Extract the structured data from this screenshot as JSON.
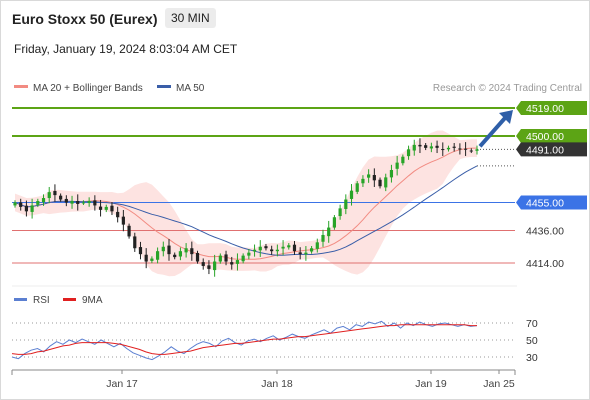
{
  "header": {
    "title": "Euro Stoxx 50 (Eurex)",
    "timeframe": "30 MIN",
    "datetime": "Friday, January 19, 2024 8:03:04 AM CET"
  },
  "legend_main": [
    {
      "label": "MA 20 + Bollinger Bands",
      "color": "#f28b82"
    },
    {
      "label": "MA 50",
      "color": "#3a5ea8"
    }
  ],
  "credit": "Research © 2024 Trading Central",
  "legend_rsi": [
    {
      "label": "RSI",
      "color": "#5b7fd1"
    },
    {
      "label": "9MA",
      "color": "#e02020"
    }
  ],
  "chart_data": [
    {
      "type": "candlestick",
      "title": "Euro Stoxx 50 (Eurex)",
      "timeframe": "30 MIN",
      "ylim": [
        4400,
        4530
      ],
      "x_ticks": [
        "Jan 17",
        "Jan 18",
        "Jan 19",
        "Jan 25"
      ],
      "price_levels": [
        {
          "value": 4519.0,
          "label": "4519.00",
          "style": "target",
          "color": "#5ca415"
        },
        {
          "value": 4500.0,
          "label": "4500.00",
          "style": "resistance",
          "color": "#5ca415"
        },
        {
          "value": 4491.0,
          "label": "4491.00",
          "style": "last price",
          "color": "#333333"
        },
        {
          "value": 4455.0,
          "label": "4455.00",
          "style": "pivot",
          "color": "#3b73e6"
        },
        {
          "value": 4436.0,
          "label": "4436.00",
          "style": "support",
          "color": "#e07070"
        },
        {
          "value": 4414.0,
          "label": "4414.00",
          "style": "support",
          "color": "#e07070"
        }
      ],
      "closes": [
        4455,
        4452,
        4449,
        4453,
        4456,
        4458,
        4462,
        4460,
        4457,
        4455,
        4456,
        4454,
        4455,
        4456,
        4453,
        4450,
        4452,
        4449,
        4445,
        4440,
        4432,
        4424,
        4420,
        4415,
        4417,
        4422,
        4425,
        4420,
        4418,
        4422,
        4424,
        4420,
        4415,
        4412,
        4410,
        4415,
        4419,
        4415,
        4413,
        4416,
        4419,
        4421,
        4423,
        4425,
        4424,
        4422,
        4423,
        4425,
        4426,
        4422,
        4420,
        4421,
        4424,
        4428,
        4433,
        4438,
        4445,
        4451,
        4457,
        4463,
        4468,
        4471,
        4474,
        4470,
        4466,
        4472,
        4477,
        4482,
        4486,
        4491,
        4494,
        4493,
        4492,
        4493,
        4492,
        4491,
        4492,
        4492,
        4491,
        4491,
        4490,
        4491
      ],
      "series": [
        {
          "name": "MA 20 + Bollinger Bands",
          "color": "#f28b82"
        },
        {
          "name": "MA 50",
          "color": "#3a5ea8"
        }
      ],
      "projection": {
        "from": 4491,
        "to": 4519
      }
    },
    {
      "type": "line",
      "ylim": [
        20,
        80
      ],
      "y_ticks": [
        70,
        50,
        30
      ],
      "series": [
        {
          "name": "RSI",
          "color": "#5b7fd1",
          "values": [
            30,
            28,
            34,
            38,
            40,
            36,
            43,
            48,
            45,
            50,
            47,
            51,
            48,
            45,
            50,
            46,
            42,
            46,
            40,
            35,
            32,
            29,
            27,
            31,
            36,
            42,
            37,
            34,
            40,
            45,
            48,
            46,
            42,
            49,
            52,
            47,
            44,
            49,
            51,
            48,
            52,
            55,
            50,
            53,
            57,
            54,
            52,
            56,
            59,
            62,
            58,
            64,
            66,
            62,
            68,
            66,
            71,
            69,
            72,
            66,
            70,
            64,
            70,
            67,
            71,
            68,
            66,
            69,
            70,
            68,
            66,
            68,
            66,
            67
          ]
        },
        {
          "name": "9MA",
          "color": "#e02020",
          "values": [
            34,
            33,
            33,
            34,
            36,
            37,
            39,
            41,
            43,
            44,
            46,
            47,
            47,
            47,
            47,
            47,
            46,
            45,
            43,
            41,
            39,
            36,
            34,
            33,
            33,
            34,
            35,
            36,
            37,
            39,
            41,
            42,
            43,
            44,
            45,
            46,
            46,
            47,
            48,
            49,
            50,
            51,
            51,
            52,
            53,
            54,
            54,
            55,
            56,
            57,
            58,
            59,
            60,
            61,
            62,
            63,
            64,
            65,
            66,
            67,
            67,
            68,
            68,
            68,
            68,
            68,
            68,
            68,
            68,
            68,
            68,
            68,
            67,
            67
          ]
        }
      ]
    }
  ]
}
